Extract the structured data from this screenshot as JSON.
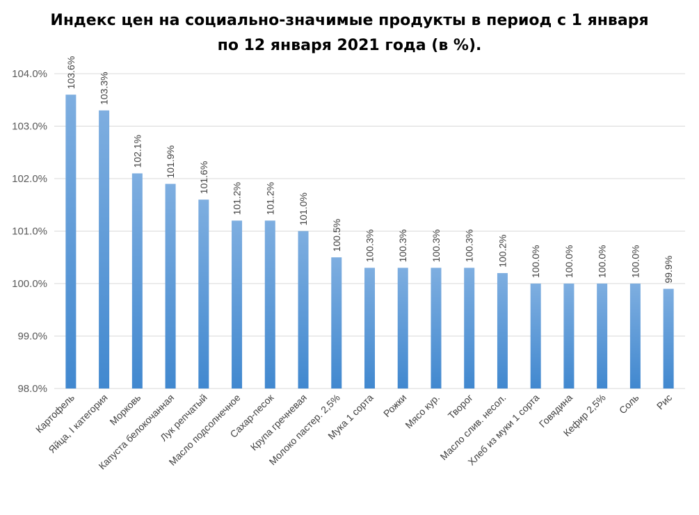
{
  "chart_data": {
    "type": "bar",
    "title": "Индекс цен на социально-значимые продукты в период с 1 января по 12 января 2021 года (в %).",
    "categories": [
      "Картофель",
      "Яйца, I категория",
      "Морковь",
      "Капуста белокочанная",
      "Лук репчатый",
      "Масло подсолнечное",
      "Сахар-песок",
      "Крупа гречневая",
      "Молоко пастер. 2,5%",
      "Мука 1 сорта",
      "Рожки",
      "Мясо кур.",
      "Творог",
      "Масло слив. несол.",
      "Хлеб из муки 1 сорта",
      "Говядина",
      "Кефир 2,5%",
      "Соль",
      "Рис"
    ],
    "values": [
      103.6,
      103.3,
      102.1,
      101.9,
      101.6,
      101.2,
      101.2,
      101.0,
      100.5,
      100.3,
      100.3,
      100.3,
      100.3,
      100.2,
      100.0,
      100.0,
      100.0,
      100.0,
      99.9
    ],
    "data_labels": [
      "103.6%",
      "103.3%",
      "102.1%",
      "101.9%",
      "101.6%",
      "101.2%",
      "101.2%",
      "101.0%",
      "100.5%",
      "100.3%",
      "100.3%",
      "100.3%",
      "100.3%",
      "100.2%",
      "100.0%",
      "100.0%",
      "100.0%",
      "100.0%",
      "99.9%"
    ],
    "y_ticks": [
      "98.0%",
      "99.0%",
      "100.0%",
      "101.0%",
      "102.0%",
      "103.0%",
      "104.0%"
    ],
    "ylim": [
      98,
      104
    ],
    "grid": true,
    "legend": "none",
    "bar_color_top": "#7eaee0",
    "bar_color_bottom": "#4188cf"
  }
}
